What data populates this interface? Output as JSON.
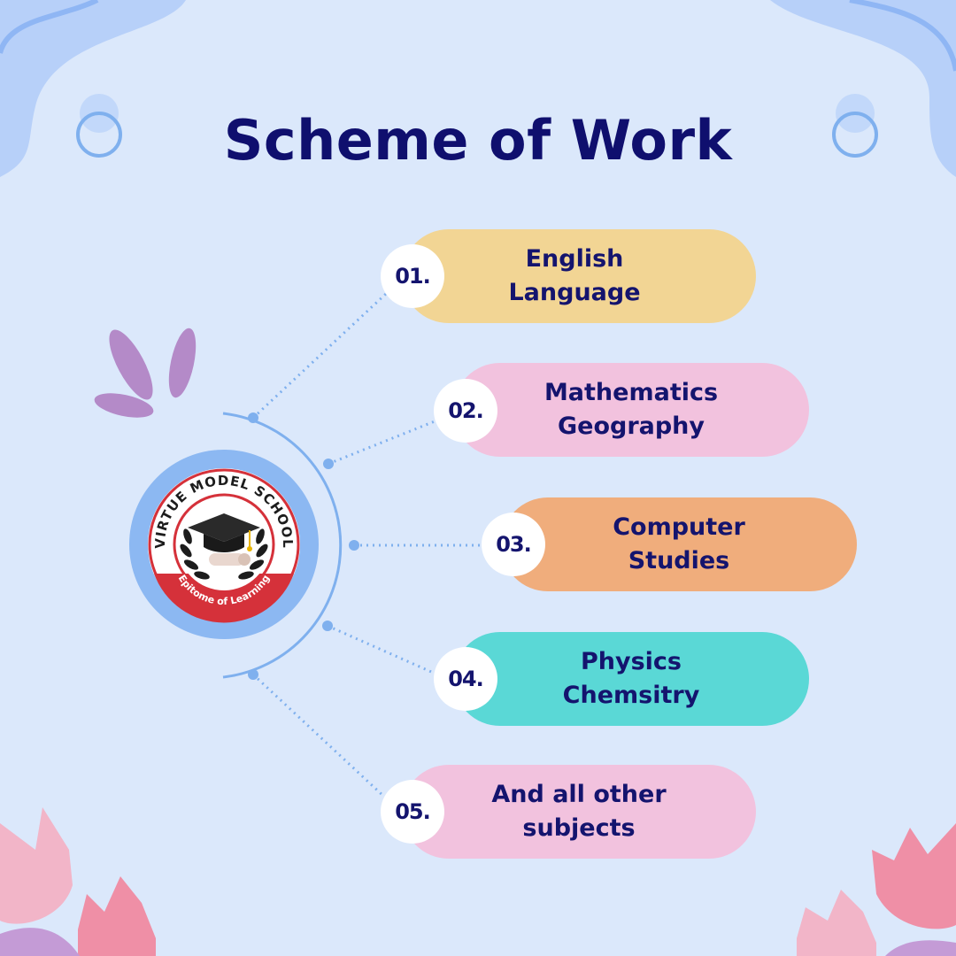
{
  "title": "Scheme of Work",
  "logo": {
    "name": "VIRTUE MODEL SCHOOL",
    "motto": "Epitome of Learning"
  },
  "items": [
    {
      "number": "01.",
      "lines": [
        "English",
        "Language"
      ],
      "color": "#f2d594"
    },
    {
      "number": "02.",
      "lines": [
        "Mathematics",
        "Geography"
      ],
      "color": "#f2c2de"
    },
    {
      "number": "03.",
      "lines": [
        "Computer",
        "Studies"
      ],
      "color": "#f0ad7c"
    },
    {
      "number": "04.",
      "lines": [
        "Physics",
        "Chemsitry"
      ],
      "color": "#5ad8d6"
    },
    {
      "number": "05.",
      "lines": [
        "And all other",
        "subjects"
      ],
      "color": "#f2c2de"
    }
  ],
  "colors": {
    "background": "#dbe8fb",
    "title": "#0f0f6e",
    "connector": "#7fb0ee",
    "logo_ring": "#8cb8f2",
    "logo_red": "#d5313a"
  }
}
